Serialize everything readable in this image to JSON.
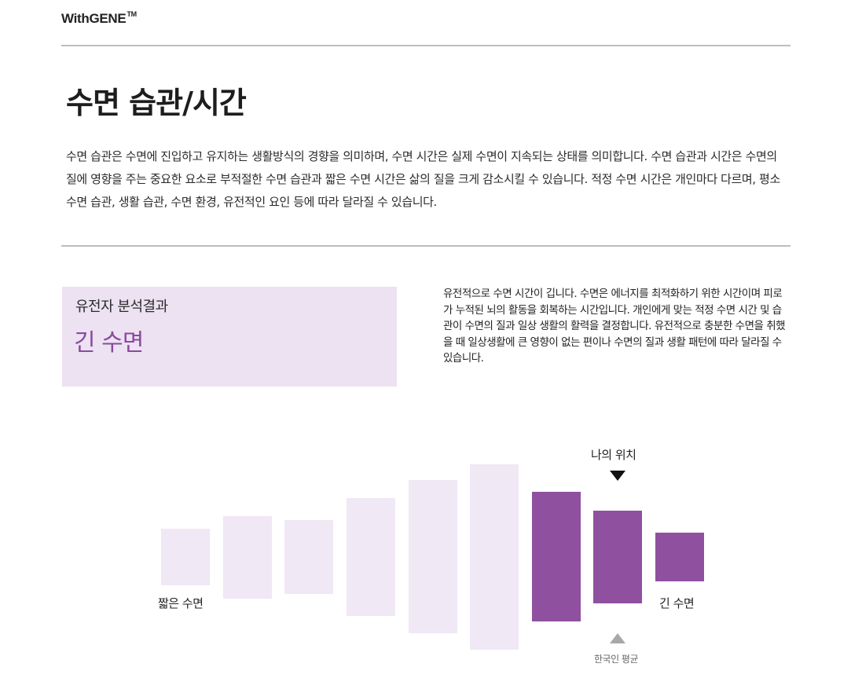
{
  "header": {
    "logo_text": "WithGENE",
    "logo_trademark": "TM"
  },
  "section": {
    "title": "수면 습관/시간",
    "description": "수면 습관은 수면에 진입하고 유지하는 생활방식의 경향을 의미하며, 수면 시간은 실제 수면이 지속되는 상태를 의미합니다. 수면 습관과 시간은 수면의 질에 영향을 주는 중요한 요소로 부적절한 수면 습관과 짧은 수면 시간은 삶의 질을 크게 감소시킬 수 있습니다. 적정 수면 시간은 개인마다 다르며, 평소 수면 습관, 생활 습관, 수면 환경, 유전적인 요인 등에 따라 달라질 수 있습니다."
  },
  "result": {
    "label": "유전자 분석결과",
    "value": "긴 수면",
    "description": "유전적으로 수면 시간이 깁니다. 수면은 에너지를 최적화하기 위한 시간이며  피로가 누적된 뇌의 활동을 회복하는 시간입니다. 개인에게 맞는 적정 수면 시간 및 습관이 수면의 질과 일상 생활의 활력을 결정합니다. 유전적으로 충분한 수면을 취했을 때  일상생활에 큰 영향이 없는 편이나 수면의 질과 생활 패턴에 따라 달라질 수 있습니다."
  },
  "scale": {
    "my_position_label": "나의 위치",
    "average_label": "한국인 평균",
    "short_label": "짧은 수면",
    "long_label": "긴 수면",
    "bar_count": 9,
    "highlighted_bars_from": 7,
    "my_position_bar": 8,
    "average_bar": 8
  },
  "colors": {
    "accent": "#8f509f",
    "bar_light": "#f0e8f4",
    "result_box_bg": "#ece2f2",
    "result_value": "#8a4a9e",
    "avg_marker": "#a8a8a8",
    "my_marker": "#111111"
  }
}
